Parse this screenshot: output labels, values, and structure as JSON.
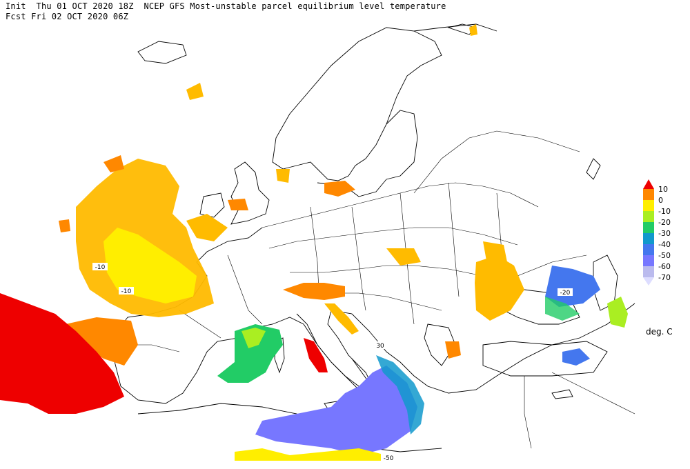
{
  "header": {
    "init_line": "Init  Thu 01 OCT 2020 18Z  NCEP GFS Most-unstable parcel equilibrium level temperature",
    "fcst_line": "Fcst Fri 02 OCT 2020 06Z"
  },
  "legend": {
    "items": [
      {
        "label": "10",
        "color": "#ee0000"
      },
      {
        "label": "0",
        "color": "#ff8800"
      },
      {
        "label": "-10",
        "color": "#ffee00"
      },
      {
        "label": "-20",
        "color": "#aaee22"
      },
      {
        "label": "-30",
        "color": "#22cc66"
      },
      {
        "label": "-40",
        "color": "#1199cc"
      },
      {
        "label": "-50",
        "color": "#4477ee"
      },
      {
        "label": "-60",
        "color": "#7777ff"
      },
      {
        "label": "-70",
        "color": "#bbbbee"
      }
    ],
    "orange_fill": "#ffbb00",
    "below_color": "#ddddff",
    "units": "deg. C"
  },
  "contour_labels": [
    {
      "text": "-10"
    },
    {
      "text": "-10"
    },
    {
      "text": "30"
    },
    {
      "text": "-20"
    },
    {
      "text": "-50"
    }
  ]
}
